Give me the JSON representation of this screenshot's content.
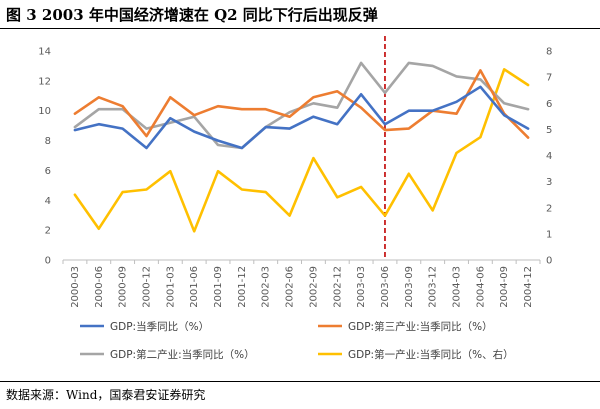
{
  "figure": {
    "title": "图 3 2003 年中国经济增速在 Q2 同比下行后出现反弹",
    "source": "数据来源：Wind，国泰君安证券研究"
  },
  "chart_data": {
    "type": "line",
    "categories": [
      "2000-03",
      "2000-06",
      "2000-09",
      "2000-12",
      "2001-03",
      "2001-06",
      "2001-09",
      "2001-12",
      "2002-03",
      "2002-06",
      "2002-09",
      "2002-12",
      "2003-03",
      "2003-06",
      "2003-09",
      "2003-12",
      "2004-03",
      "2004-06",
      "2004-09",
      "2004-12"
    ],
    "left_axis": {
      "ylim": [
        0,
        14
      ],
      "ticks": [
        0,
        2,
        4,
        6,
        8,
        10,
        12,
        14
      ]
    },
    "right_axis": {
      "ylim": [
        0,
        8
      ],
      "ticks": [
        0,
        1,
        2,
        3,
        4,
        5,
        6,
        7,
        8
      ]
    },
    "grid": false,
    "legend_position": "bottom",
    "marker_line": {
      "category": "2003-06",
      "color": "#C00000",
      "style": "dashed"
    },
    "series": [
      {
        "name": "GDP:当季同比（%）",
        "axis": "left",
        "color": "#4472C4",
        "values": [
          8.7,
          9.1,
          8.8,
          7.5,
          9.5,
          8.6,
          8.0,
          7.5,
          8.9,
          8.8,
          9.6,
          9.1,
          11.1,
          9.1,
          10.0,
          10.0,
          10.6,
          11.6,
          9.7,
          8.8
        ]
      },
      {
        "name": "GDP:第三产业:当季同比（%）",
        "axis": "left",
        "color": "#ED7D31",
        "values": [
          9.8,
          10.9,
          10.3,
          8.3,
          10.9,
          9.7,
          10.3,
          10.1,
          10.1,
          9.6,
          10.9,
          11.3,
          10.2,
          8.7,
          8.8,
          10.0,
          9.8,
          12.7,
          9.8,
          8.2
        ]
      },
      {
        "name": "GDP:第二产业:当季同比（%）",
        "axis": "left",
        "color": "#A5A5A5",
        "values": [
          8.9,
          10.1,
          10.1,
          8.8,
          9.2,
          9.6,
          7.7,
          7.5,
          8.9,
          9.9,
          10.5,
          10.2,
          13.2,
          11.2,
          13.2,
          13.0,
          12.3,
          12.1,
          10.5,
          10.1
        ]
      },
      {
        "name": "GDP:第一产业:当季同比（%、右）",
        "axis": "right",
        "color": "#FFC000",
        "values": [
          2.5,
          1.2,
          2.6,
          2.7,
          3.4,
          1.1,
          3.4,
          2.7,
          2.6,
          1.7,
          3.9,
          2.4,
          2.8,
          1.7,
          3.3,
          1.9,
          4.1,
          4.7,
          7.3,
          6.7
        ]
      }
    ]
  }
}
